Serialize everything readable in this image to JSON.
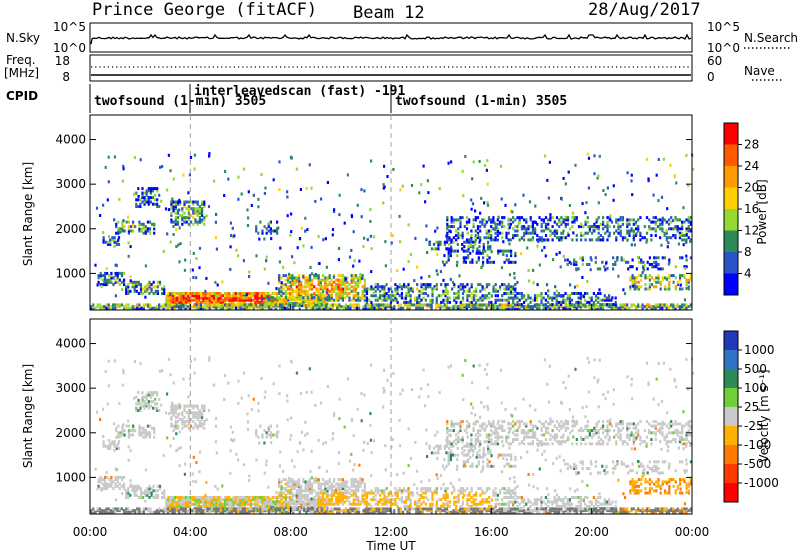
{
  "header": {
    "station": "Prince George (fitACF)",
    "beam": "Beam 12",
    "date": "28/Aug/2017"
  },
  "noise_panel": {
    "left_label": "N.Sky",
    "right_label": "N.Search",
    "left_ticks": [
      "10^5",
      "10^0"
    ],
    "right_ticks": [
      "10^5",
      "10^0"
    ]
  },
  "freq_panel": {
    "left_label_1": "Freq.",
    "left_label_2": "[MHz]",
    "right_label": "Nave",
    "left_ticks": [
      "18",
      "8"
    ],
    "right_ticks": [
      "60",
      "0"
    ]
  },
  "cpid": {
    "label": "CPID",
    "modes": [
      {
        "text": "twofsound (1-min) 3505",
        "start_hour": 0
      },
      {
        "text": "interleavedscan (fast) -191",
        "start_hour": 4
      },
      {
        "text": "twofsound (1-min) 3505",
        "start_hour": 12
      }
    ]
  },
  "chart_data": [
    {
      "type": "heatmap",
      "name": "power",
      "ylabel": "Slant Range [km]",
      "ylim": [
        180,
        4550
      ],
      "xlim_hours": [
        0,
        24
      ],
      "yticks": [
        1000,
        2000,
        3000,
        4000
      ],
      "colorbar": {
        "label": "Power [dB]",
        "ticks": [
          "28",
          "24",
          "20",
          "16",
          "12",
          "8",
          "4"
        ],
        "colors": [
          "#ff0000",
          "#ff5a00",
          "#ff9a00",
          "#ffd000",
          "#94d832",
          "#2e8b57",
          "#2855c8",
          "#0000ff"
        ]
      }
    },
    {
      "type": "heatmap",
      "name": "velocity",
      "ylabel": "Slant Range [km]",
      "ylim": [
        180,
        4550
      ],
      "xlim_hours": [
        0,
        24
      ],
      "yticks": [
        1000,
        2000,
        3000,
        4000
      ],
      "colorbar": {
        "label": "Velocity [m s⁻¹]",
        "ticks": [
          "1000",
          "500",
          "100",
          "25",
          "-25",
          "-100",
          "-500",
          "-1000"
        ],
        "colors": [
          "#2039b8",
          "#2f74c6",
          "#2e8b57",
          "#6fce3a",
          "#c9c9c9",
          "#ffb000",
          "#ff7a00",
          "#ff3a00",
          "#ff0000"
        ]
      }
    }
  ],
  "xaxis": {
    "ticks": [
      "00:00",
      "04:00",
      "08:00",
      "12:00",
      "16:00",
      "20:00",
      "00:00"
    ],
    "label": "Time UT"
  },
  "colors": {
    "axis": "#000000",
    "dash": "#a0a0a0",
    "ground": "#777777"
  }
}
